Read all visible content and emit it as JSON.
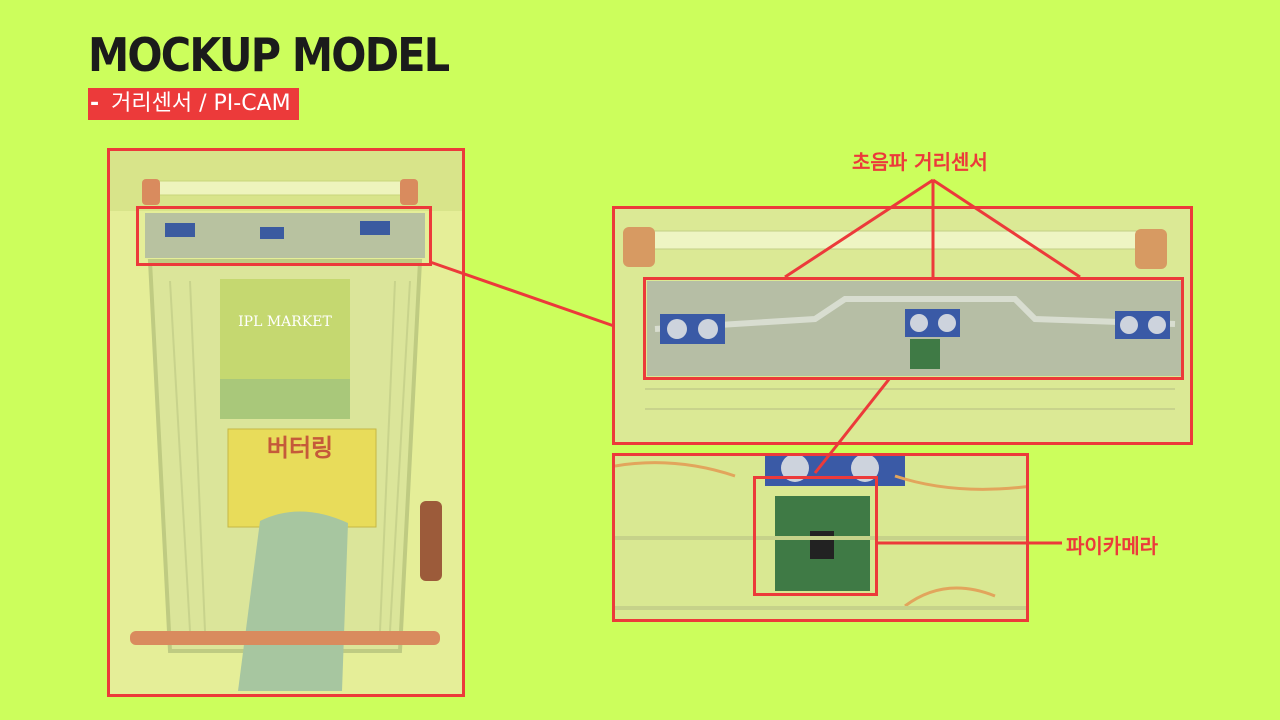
{
  "slide": {
    "title": "MOCKUP MODEL",
    "subtitle": "거리센서 / PI-CAM",
    "subtitle_dash": "-"
  },
  "annotations": {
    "ultrasonic_label": "초음파 거리센서",
    "camera_label": "파이카메라"
  },
  "photo_left": {
    "market_sign": "IPL MARKET",
    "snack_box": "버터링"
  },
  "colors": {
    "background": "#ccfe5c",
    "accent_red": "#ec3a3a",
    "title_text": "#1b1b1b"
  }
}
